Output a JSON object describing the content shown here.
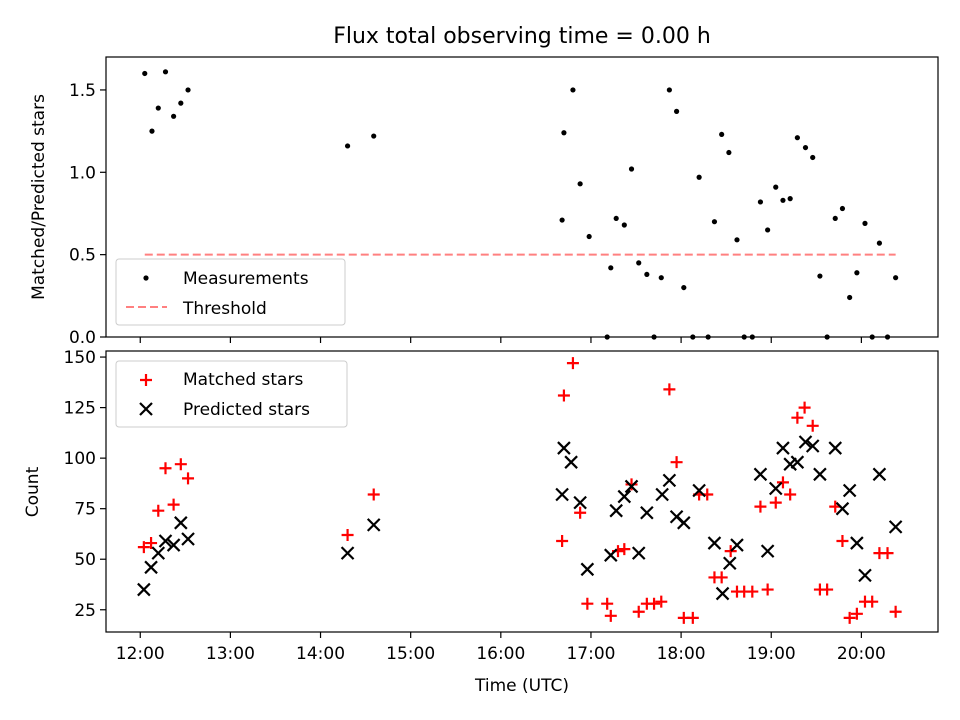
{
  "figure": {
    "title": "Flux total observing time = 0.00 h"
  },
  "chart_data": [
    {
      "type": "scatter",
      "ylabel": "Matched/Predicted stars",
      "xlim": [
        11.62,
        20.85
      ],
      "ylim": [
        0,
        1.7
      ],
      "yticks": [
        "0.0",
        "0.5",
        "1.0",
        "1.5"
      ],
      "ytick_values": [
        0,
        0.5,
        1.0,
        1.5
      ],
      "legend_position": "lower-left",
      "threshold": {
        "name": "Threshold",
        "value": 0.5,
        "x_range": [
          12.05,
          20.38
        ],
        "color": "#ff8080"
      },
      "series": [
        {
          "name": "Measurements",
          "color": "#000000",
          "points": [
            [
              12.05,
              1.6
            ],
            [
              12.13,
              1.25
            ],
            [
              12.2,
              1.39
            ],
            [
              12.28,
              1.61
            ],
            [
              12.37,
              1.34
            ],
            [
              12.45,
              1.42
            ],
            [
              12.53,
              1.5
            ],
            [
              14.3,
              1.16
            ],
            [
              14.59,
              1.22
            ],
            [
              16.68,
              0.71
            ],
            [
              16.7,
              1.24
            ],
            [
              16.8,
              1.5
            ],
            [
              16.88,
              0.93
            ],
            [
              16.98,
              0.61
            ],
            [
              17.18,
              0.0
            ],
            [
              17.22,
              0.42
            ],
            [
              17.28,
              0.72
            ],
            [
              17.37,
              0.68
            ],
            [
              17.45,
              1.02
            ],
            [
              17.53,
              0.45
            ],
            [
              17.62,
              0.38
            ],
            [
              17.7,
              0.0
            ],
            [
              17.78,
              0.36
            ],
            [
              17.87,
              1.5
            ],
            [
              17.95,
              1.37
            ],
            [
              18.03,
              0.3
            ],
            [
              18.13,
              0.0
            ],
            [
              18.2,
              0.97
            ],
            [
              18.3,
              0.0
            ],
            [
              18.37,
              0.7
            ],
            [
              18.45,
              1.23
            ],
            [
              18.53,
              1.12
            ],
            [
              18.62,
              0.59
            ],
            [
              18.7,
              0.0
            ],
            [
              18.79,
              0.0
            ],
            [
              18.88,
              0.82
            ],
            [
              18.96,
              0.65
            ],
            [
              19.05,
              0.91
            ],
            [
              19.13,
              0.83
            ],
            [
              19.21,
              0.84
            ],
            [
              19.29,
              1.21
            ],
            [
              19.38,
              1.15
            ],
            [
              19.46,
              1.09
            ],
            [
              19.54,
              0.37
            ],
            [
              19.62,
              0.0
            ],
            [
              19.71,
              0.72
            ],
            [
              19.79,
              0.78
            ],
            [
              19.87,
              0.24
            ],
            [
              19.95,
              0.39
            ],
            [
              20.04,
              0.69
            ],
            [
              20.12,
              0.0
            ],
            [
              20.2,
              0.57
            ],
            [
              20.29,
              0.0
            ],
            [
              20.38,
              0.36
            ]
          ]
        }
      ],
      "legend": [
        "Measurements",
        "Threshold"
      ]
    },
    {
      "type": "scatter",
      "xlabel": "Time (UTC)",
      "ylabel": "Count",
      "xlim": [
        11.62,
        20.85
      ],
      "ylim": [
        14,
        153
      ],
      "xticks": [
        "12:00",
        "13:00",
        "14:00",
        "15:00",
        "16:00",
        "17:00",
        "18:00",
        "19:00",
        "20:00"
      ],
      "xtick_values": [
        12,
        13,
        14,
        15,
        16,
        17,
        18,
        19,
        20
      ],
      "yticks": [
        "25",
        "50",
        "75",
        "100",
        "125",
        "150"
      ],
      "ytick_values": [
        25,
        50,
        75,
        100,
        125,
        150
      ],
      "legend_position": "upper-left",
      "series": [
        {
          "name": "Matched stars",
          "color": "#ff0000",
          "marker": "plus",
          "points": [
            [
              12.04,
              56
            ],
            [
              12.12,
              58
            ],
            [
              12.2,
              74
            ],
            [
              12.28,
              95
            ],
            [
              12.37,
              77
            ],
            [
              12.45,
              97
            ],
            [
              12.53,
              90
            ],
            [
              14.3,
              62
            ],
            [
              14.59,
              82
            ],
            [
              16.68,
              59
            ],
            [
              16.7,
              131
            ],
            [
              16.8,
              147
            ],
            [
              16.88,
              73
            ],
            [
              16.96,
              28
            ],
            [
              17.18,
              28
            ],
            [
              17.22,
              22
            ],
            [
              17.3,
              54
            ],
            [
              17.37,
              55
            ],
            [
              17.45,
              87
            ],
            [
              17.53,
              24
            ],
            [
              17.62,
              28
            ],
            [
              17.7,
              28
            ],
            [
              17.78,
              29
            ],
            [
              17.87,
              134
            ],
            [
              17.95,
              98
            ],
            [
              18.03,
              21
            ],
            [
              18.13,
              21
            ],
            [
              18.2,
              82
            ],
            [
              18.29,
              82
            ],
            [
              18.37,
              41
            ],
            [
              18.45,
              41
            ],
            [
              18.55,
              54
            ],
            [
              18.62,
              34
            ],
            [
              18.7,
              34
            ],
            [
              18.79,
              34
            ],
            [
              18.88,
              76
            ],
            [
              18.96,
              35
            ],
            [
              19.05,
              78
            ],
            [
              19.13,
              88
            ],
            [
              19.21,
              82
            ],
            [
              19.29,
              120
            ],
            [
              19.37,
              125
            ],
            [
              19.46,
              116
            ],
            [
              19.54,
              35
            ],
            [
              19.62,
              35
            ],
            [
              19.71,
              76
            ],
            [
              19.79,
              59
            ],
            [
              19.87,
              21
            ],
            [
              19.95,
              23
            ],
            [
              20.04,
              29
            ],
            [
              20.12,
              29
            ],
            [
              20.2,
              53
            ],
            [
              20.29,
              53
            ],
            [
              20.38,
              24
            ]
          ]
        },
        {
          "name": "Predicted stars",
          "color": "#000000",
          "marker": "x",
          "points": [
            [
              12.04,
              35
            ],
            [
              12.12,
              46
            ],
            [
              12.2,
              53
            ],
            [
              12.28,
              59
            ],
            [
              12.37,
              57
            ],
            [
              12.45,
              68
            ],
            [
              12.53,
              60
            ],
            [
              14.3,
              53
            ],
            [
              14.59,
              67
            ],
            [
              16.68,
              82
            ],
            [
              16.7,
              105
            ],
            [
              16.78,
              98
            ],
            [
              16.88,
              78
            ],
            [
              16.96,
              45
            ],
            [
              17.22,
              52
            ],
            [
              17.28,
              74
            ],
            [
              17.37,
              81
            ],
            [
              17.45,
              86
            ],
            [
              17.53,
              53
            ],
            [
              17.62,
              73
            ],
            [
              17.79,
              82
            ],
            [
              17.87,
              89
            ],
            [
              17.95,
              71
            ],
            [
              18.03,
              68
            ],
            [
              18.2,
              84
            ],
            [
              18.37,
              58
            ],
            [
              18.46,
              33
            ],
            [
              18.54,
              48
            ],
            [
              18.62,
              57
            ],
            [
              18.88,
              92
            ],
            [
              18.96,
              54
            ],
            [
              19.05,
              85
            ],
            [
              19.13,
              105
            ],
            [
              19.21,
              97
            ],
            [
              19.29,
              98
            ],
            [
              19.38,
              108
            ],
            [
              19.46,
              106
            ],
            [
              19.54,
              92
            ],
            [
              19.71,
              105
            ],
            [
              19.79,
              75
            ],
            [
              19.87,
              84
            ],
            [
              19.95,
              58
            ],
            [
              20.04,
              42
            ],
            [
              20.2,
              92
            ],
            [
              20.38,
              66
            ]
          ]
        }
      ],
      "legend": [
        "Matched stars",
        "Predicted stars"
      ]
    }
  ]
}
